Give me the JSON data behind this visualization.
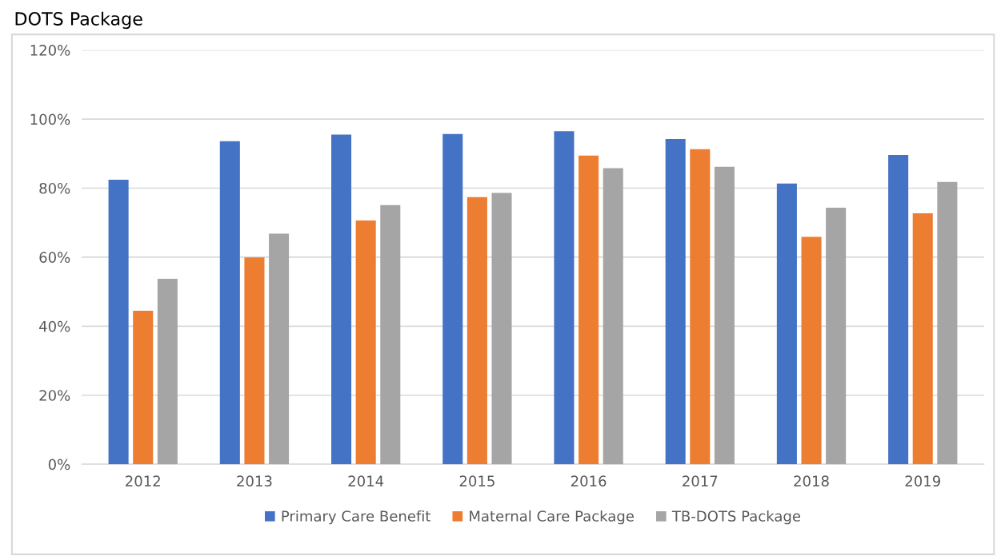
{
  "chart_data": {
    "type": "bar",
    "title": "DOTS Package",
    "categories": [
      "2012",
      "2013",
      "2014",
      "2015",
      "2016",
      "2017",
      "2018",
      "2019"
    ],
    "series": [
      {
        "name": "Primary Care Benefit",
        "color": "#4472c4",
        "values": [
          82.4,
          93.6,
          95.5,
          95.7,
          96.5,
          94.2,
          81.3,
          89.6
        ]
      },
      {
        "name": "Maternal Care Package",
        "color": "#ed7d31",
        "values": [
          44.5,
          59.9,
          70.6,
          77.4,
          89.4,
          91.3,
          65.9,
          72.7
        ]
      },
      {
        "name": "TB-DOTS Package",
        "color": "#a5a5a5",
        "values": [
          53.7,
          66.8,
          75.1,
          78.6,
          85.8,
          86.2,
          74.3,
          81.8
        ]
      }
    ],
    "ylim": [
      0,
      120
    ],
    "yticks": [
      {
        "value": 0,
        "label": "0%"
      },
      {
        "value": 20,
        "label": "20%"
      },
      {
        "value": 40,
        "label": "40%"
      },
      {
        "value": 60,
        "label": "60%"
      },
      {
        "value": 80,
        "label": "80%"
      },
      {
        "value": 100,
        "label": "100%"
      },
      {
        "value": 120,
        "label": "120%"
      }
    ],
    "grid": "y",
    "legend": "bottom"
  }
}
